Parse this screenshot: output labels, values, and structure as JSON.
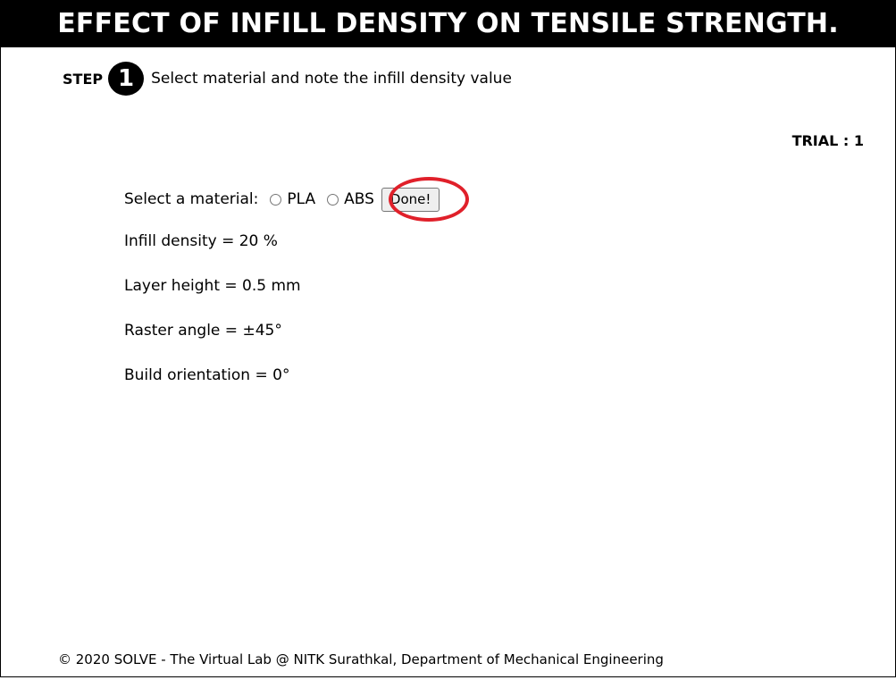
{
  "header": {
    "title": "EFFECT OF INFILL DENSITY ON TENSILE STRENGTH."
  },
  "step": {
    "label": "STEP",
    "number": "1",
    "instruction": "Select material and note the infill density value"
  },
  "trial": {
    "text": "TRIAL : 1"
  },
  "material": {
    "prompt": "Select a material:",
    "options": [
      {
        "label": "PLA",
        "checked": false
      },
      {
        "label": "ABS",
        "checked": false
      }
    ],
    "done_label": "Done!"
  },
  "parameters": {
    "infill_density": "Infill density = 20 %",
    "layer_height": "Layer height = 0.5 mm",
    "raster_angle": "Raster angle = ±45°",
    "build_orientation": "Build orientation = 0°"
  },
  "annotation": {
    "highlight_color": "#e0202a"
  },
  "footer": {
    "text": "© 2020 SOLVE - The Virtual Lab @ NITK Surathkal, Department of Mechanical Engineering"
  }
}
